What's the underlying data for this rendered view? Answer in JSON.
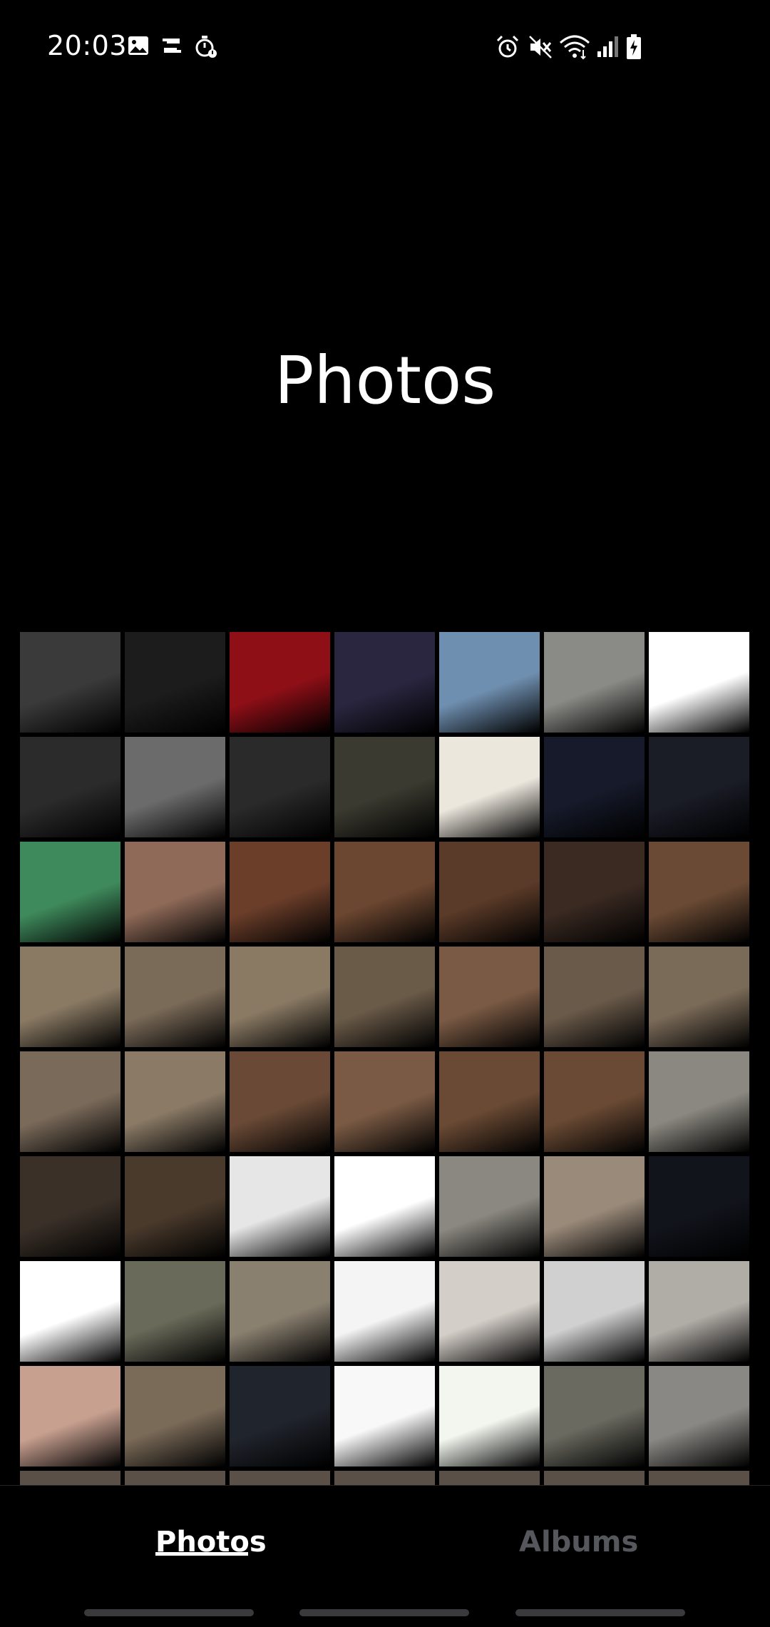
{
  "status_bar": {
    "time": "20:03",
    "left_icons": [
      "gallery-icon",
      "screen-record-icon",
      "stopwatch-icon"
    ],
    "right_icons": [
      "alarm-icon",
      "mute-icon",
      "wifi-icon",
      "cellular-signal-icon",
      "battery-charging-icon"
    ]
  },
  "header": {
    "title": "Photos"
  },
  "thumbnails": [
    "#3a3a3a",
    "#1c1c1c",
    "#8f0f17",
    "#2a2640",
    "#6f8fb0",
    "#8a8a86",
    "#ffffff",
    "#2b2b2b",
    "#6b6b6b",
    "#2a2a2a",
    "#3b3a30",
    "#ece7dd",
    "#161a2a",
    "#1a1c26",
    "#3f8a5c",
    "#8f6a58",
    "#6b3e2a",
    "#6b4630",
    "#5a3a28",
    "#3a2a22",
    "#6a4a34",
    "#8a7a64",
    "#7a6a58",
    "#8a7a64",
    "#6a5a48",
    "#7a5a44",
    "#6a5a4a",
    "#7a6a58",
    "#7a6a5a",
    "#8a7a66",
    "#6a4a36",
    "#7a5a44",
    "#6a4a34",
    "#6a4a34",
    "#8a8880",
    "#3a3028",
    "#4a3a2c",
    "#e6e6e6",
    "#ffffff",
    "#8a8880",
    "#9a8a7a",
    "#12141c",
    "#ffffff",
    "#6a6a5a",
    "#8a8070",
    "#f4f4f4",
    "#d4cec8",
    "#d0d0d0",
    "#b0aca6",
    "#c8a090",
    "#7a6a58",
    "#20242c",
    "#f8f8f8",
    "#f2f6ee",
    "#6a6a60",
    "#8a8884"
  ],
  "tabs": {
    "photos": "Photos",
    "albums": "Albums"
  }
}
